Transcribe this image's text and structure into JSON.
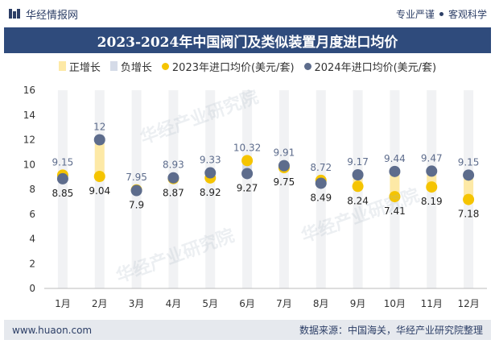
{
  "header": {
    "brand": "华经情报网",
    "tagline_left": "专业严谨",
    "tagline_right": "客观科学"
  },
  "watermark": "华经产业研究院",
  "footer": {
    "website": "www.huaon.com",
    "source": "数据来源：中国海关，华经产业研究院整理"
  },
  "colors": {
    "title_bg": "#2f4b7c",
    "increase_bar": "#fde9a6",
    "decrease_bar": "#d5dbe8",
    "dot_2023": "#f5c400",
    "dot_2024": "#5d6c8c",
    "footer_bg": "#e6e9ee"
  },
  "chart_data": {
    "type": "dot-range",
    "title": "2023-2024年中国阀门及类似装置月度进口均价",
    "legend": [
      "正增长",
      "负增长",
      "2023年进口均价(美元/套)",
      "2024年进口均价(美元/套)"
    ],
    "categories": [
      "1月",
      "2月",
      "3月",
      "4月",
      "5月",
      "6月",
      "7月",
      "8月",
      "9月",
      "10月",
      "11月",
      "12月"
    ],
    "series": [
      {
        "name": "2023年进口均价(美元/套)",
        "values": [
          9.15,
          9.04,
          7.95,
          8.87,
          8.92,
          10.32,
          9.75,
          8.72,
          8.24,
          7.41,
          8.19,
          7.18
        ]
      },
      {
        "name": "2024年进口均价(美元/套)",
        "values": [
          8.85,
          12,
          7.9,
          8.93,
          9.33,
          9.27,
          9.91,
          8.49,
          9.17,
          9.44,
          9.47,
          9.15
        ]
      }
    ],
    "y_ticks": [
      "0",
      "2",
      "4",
      "6",
      "8",
      "10",
      "12",
      "14",
      "16"
    ],
    "ylim": [
      0,
      16
    ],
    "xlabel": "",
    "ylabel": ""
  }
}
